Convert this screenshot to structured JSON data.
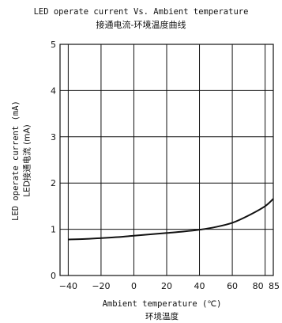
{
  "chart_data": {
    "type": "line",
    "title": "LED operate current Vs. Ambient temperature",
    "subtitle": "接通电流-环境温度曲线",
    "xlabel": "Ambient temperature (℃)",
    "xlabel_cn": "环境温度",
    "ylabel": "LED operate current (mA)",
    "ylabel_cn": "LED接通电流 (mA)",
    "xlim": [
      -45,
      85
    ],
    "ylim": [
      0,
      5
    ],
    "x_ticks": [
      -40,
      -20,
      0,
      20,
      40,
      60,
      80,
      85
    ],
    "y_ticks": [
      0,
      1,
      2,
      3,
      4,
      5
    ],
    "grid": true,
    "series": [
      {
        "x": [
          -40,
          -30,
          -20,
          -10,
          0,
          10,
          20,
          30,
          40,
          50,
          60,
          70,
          80,
          85
        ],
        "values": [
          0.78,
          0.79,
          0.81,
          0.83,
          0.86,
          0.89,
          0.92,
          0.95,
          0.99,
          1.05,
          1.14,
          1.3,
          1.5,
          1.66
        ]
      }
    ]
  }
}
